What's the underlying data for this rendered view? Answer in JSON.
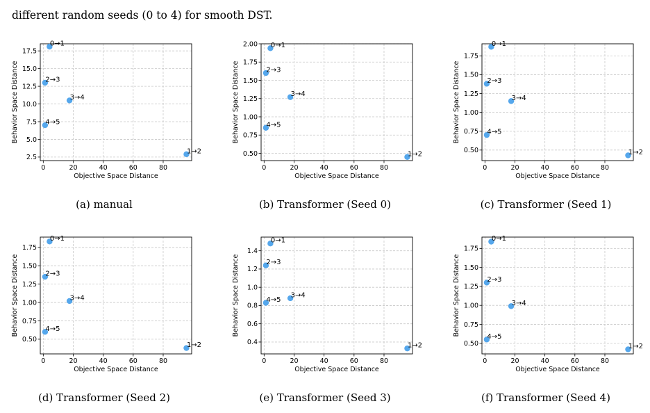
{
  "intro_text": "different random seeds (0 to 4) for smooth DST.",
  "point_color": "#55a7ec",
  "chart_data": [
    {
      "type": "scatter",
      "caption": "(a) manual",
      "xlabel": "Objective Space Distance",
      "ylabel": "Behavior Space Distance",
      "xlim": [
        -2,
        99
      ],
      "ylim": [
        2.0,
        18.5
      ],
      "xticks": [
        0,
        20,
        40,
        60,
        80
      ],
      "yticks": [
        2.5,
        5.0,
        7.5,
        10.0,
        12.5,
        15.0,
        17.5
      ],
      "ytick_labels": [
        "2.5",
        "5.0",
        "7.5",
        "10.0",
        "12.5",
        "15.0",
        "17.5"
      ],
      "grid": true,
      "points": [
        {
          "label": "0→1",
          "x": 4.2,
          "y": 18.1
        },
        {
          "label": "2→3",
          "x": 1.2,
          "y": 13.0
        },
        {
          "label": "3→4",
          "x": 17.5,
          "y": 10.5
        },
        {
          "label": "4→5",
          "x": 1.2,
          "y": 7.0
        },
        {
          "label": "1→2",
          "x": 95.5,
          "y": 2.9
        }
      ]
    },
    {
      "type": "scatter",
      "caption": "(b) Transformer (Seed 0)",
      "xlabel": "Objective Space Distance",
      "ylabel": "Behavior Space Distance",
      "xlim": [
        -2,
        99
      ],
      "ylim": [
        0.4,
        2.0
      ],
      "xticks": [
        0,
        20,
        40,
        60,
        80
      ],
      "yticks": [
        0.5,
        0.75,
        1.0,
        1.25,
        1.5,
        1.75,
        2.0
      ],
      "ytick_labels": [
        "0.50",
        "0.75",
        "1.00",
        "1.25",
        "1.50",
        "1.75",
        "2.00"
      ],
      "grid": true,
      "points": [
        {
          "label": "0→1",
          "x": 4.2,
          "y": 1.94
        },
        {
          "label": "2→3",
          "x": 1.2,
          "y": 1.6
        },
        {
          "label": "3→4",
          "x": 17.5,
          "y": 1.27
        },
        {
          "label": "4→5",
          "x": 1.2,
          "y": 0.85
        },
        {
          "label": "1→2",
          "x": 95.5,
          "y": 0.45
        }
      ]
    },
    {
      "type": "scatter",
      "caption": "(c) Transformer (Seed 1)",
      "xlabel": "Objective Space Distance",
      "ylabel": "Behavior Space Distance",
      "xlim": [
        -2,
        99
      ],
      "ylim": [
        0.36,
        1.91
      ],
      "xticks": [
        0,
        20,
        40,
        60,
        80
      ],
      "yticks": [
        0.5,
        0.75,
        1.0,
        1.25,
        1.5,
        1.75
      ],
      "ytick_labels": [
        "0.50",
        "0.75",
        "1.00",
        "1.25",
        "1.50",
        "1.75"
      ],
      "grid": true,
      "points": [
        {
          "label": "0→1",
          "x": 4.2,
          "y": 1.87
        },
        {
          "label": "2→3",
          "x": 1.2,
          "y": 1.38
        },
        {
          "label": "3→4",
          "x": 17.5,
          "y": 1.15
        },
        {
          "label": "4→5",
          "x": 1.2,
          "y": 0.7
        },
        {
          "label": "1→2",
          "x": 95.5,
          "y": 0.43
        }
      ]
    },
    {
      "type": "scatter",
      "caption": "(d) Transformer (Seed 2)",
      "xlabel": "Objective Space Distance",
      "ylabel": "Behavior Space Distance",
      "xlim": [
        -2,
        99
      ],
      "ylim": [
        0.3,
        1.89
      ],
      "xticks": [
        0,
        20,
        40,
        60,
        80
      ],
      "yticks": [
        0.5,
        0.75,
        1.0,
        1.25,
        1.5,
        1.75
      ],
      "ytick_labels": [
        "0.50",
        "0.75",
        "1.00",
        "1.25",
        "1.50",
        "1.75"
      ],
      "grid": true,
      "points": [
        {
          "label": "0→1",
          "x": 4.2,
          "y": 1.83
        },
        {
          "label": "2→3",
          "x": 1.2,
          "y": 1.35
        },
        {
          "label": "3→4",
          "x": 17.5,
          "y": 1.02
        },
        {
          "label": "4→5",
          "x": 1.2,
          "y": 0.6
        },
        {
          "label": "1→2",
          "x": 95.5,
          "y": 0.38
        }
      ]
    },
    {
      "type": "scatter",
      "caption": "(e) Transformer (Seed 3)",
      "xlabel": "Objective Space Distance",
      "ylabel": "Behavior Space Distance",
      "xlim": [
        -2,
        99
      ],
      "ylim": [
        0.27,
        1.55
      ],
      "xticks": [
        0,
        20,
        40,
        60,
        80
      ],
      "yticks": [
        0.4,
        0.6,
        0.8,
        1.0,
        1.2,
        1.4
      ],
      "ytick_labels": [
        "0.4",
        "0.6",
        "0.8",
        "1.0",
        "1.2",
        "1.4"
      ],
      "grid": true,
      "points": [
        {
          "label": "0→1",
          "x": 4.2,
          "y": 1.48
        },
        {
          "label": "2→3",
          "x": 1.2,
          "y": 1.24
        },
        {
          "label": "3→4",
          "x": 17.5,
          "y": 0.88
        },
        {
          "label": "4→5",
          "x": 1.2,
          "y": 0.83
        },
        {
          "label": "1→2",
          "x": 95.5,
          "y": 0.33
        }
      ]
    },
    {
      "type": "scatter",
      "caption": "(f) Transformer (Seed 4)",
      "xlabel": "Objective Space Distance",
      "ylabel": "Behavior Space Distance",
      "xlim": [
        -2,
        99
      ],
      "ylim": [
        0.36,
        1.9
      ],
      "xticks": [
        0,
        20,
        40,
        60,
        80
      ],
      "yticks": [
        0.5,
        0.75,
        1.0,
        1.25,
        1.5,
        1.75
      ],
      "ytick_labels": [
        "0.50",
        "0.75",
        "1.00",
        "1.25",
        "1.50",
        "1.75"
      ],
      "grid": true,
      "points": [
        {
          "label": "0→1",
          "x": 4.2,
          "y": 1.84
        },
        {
          "label": "2→3",
          "x": 1.2,
          "y": 1.3
        },
        {
          "label": "3→4",
          "x": 17.5,
          "y": 0.99
        },
        {
          "label": "4→5",
          "x": 1.2,
          "y": 0.55
        },
        {
          "label": "1→2",
          "x": 95.5,
          "y": 0.42
        }
      ]
    }
  ]
}
